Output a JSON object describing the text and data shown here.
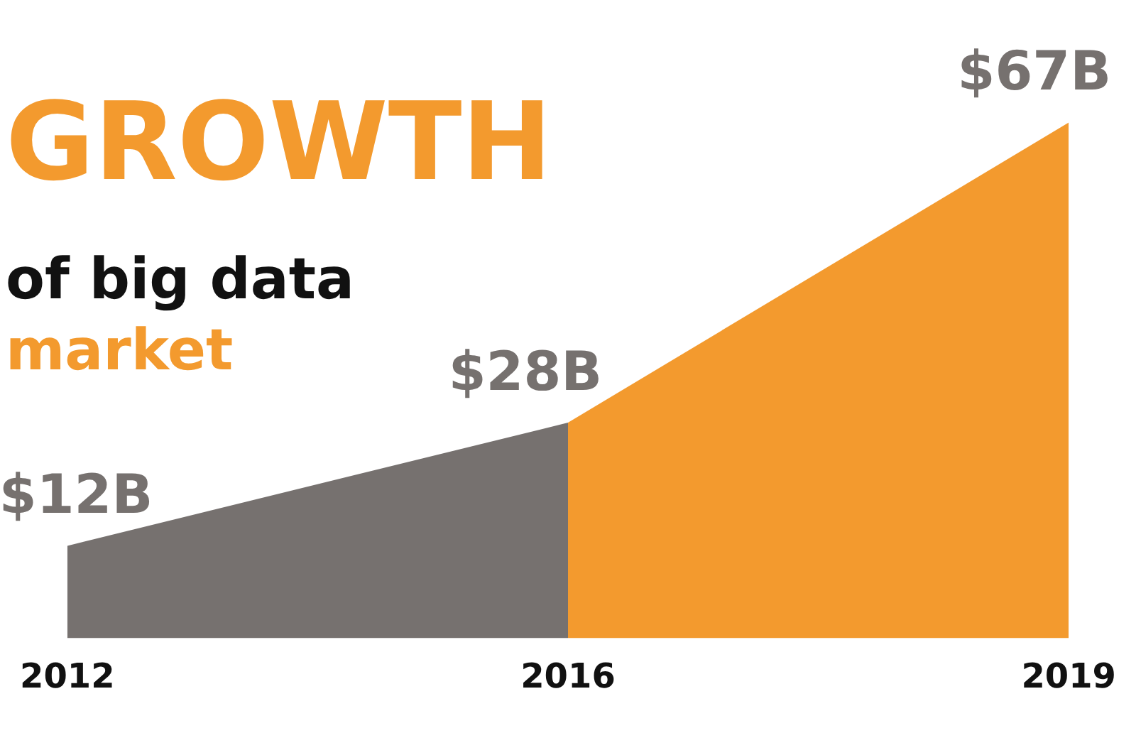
{
  "chart_data": {
    "type": "area",
    "title": "GROWTH",
    "subtitle": "of big data market",
    "categories": [
      "2012",
      "2016",
      "2019"
    ],
    "series": [
      {
        "color": "#76716f",
        "values": [
          12,
          28,
          null
        ],
        "value_labels": [
          "$12B",
          "$28B",
          null
        ]
      },
      {
        "color": "#f39a2e",
        "values": [
          null,
          28,
          67
        ],
        "value_labels": [
          null,
          null,
          "$67B"
        ]
      }
    ],
    "grid": false,
    "legend": false,
    "tick_labels": "x"
  }
}
